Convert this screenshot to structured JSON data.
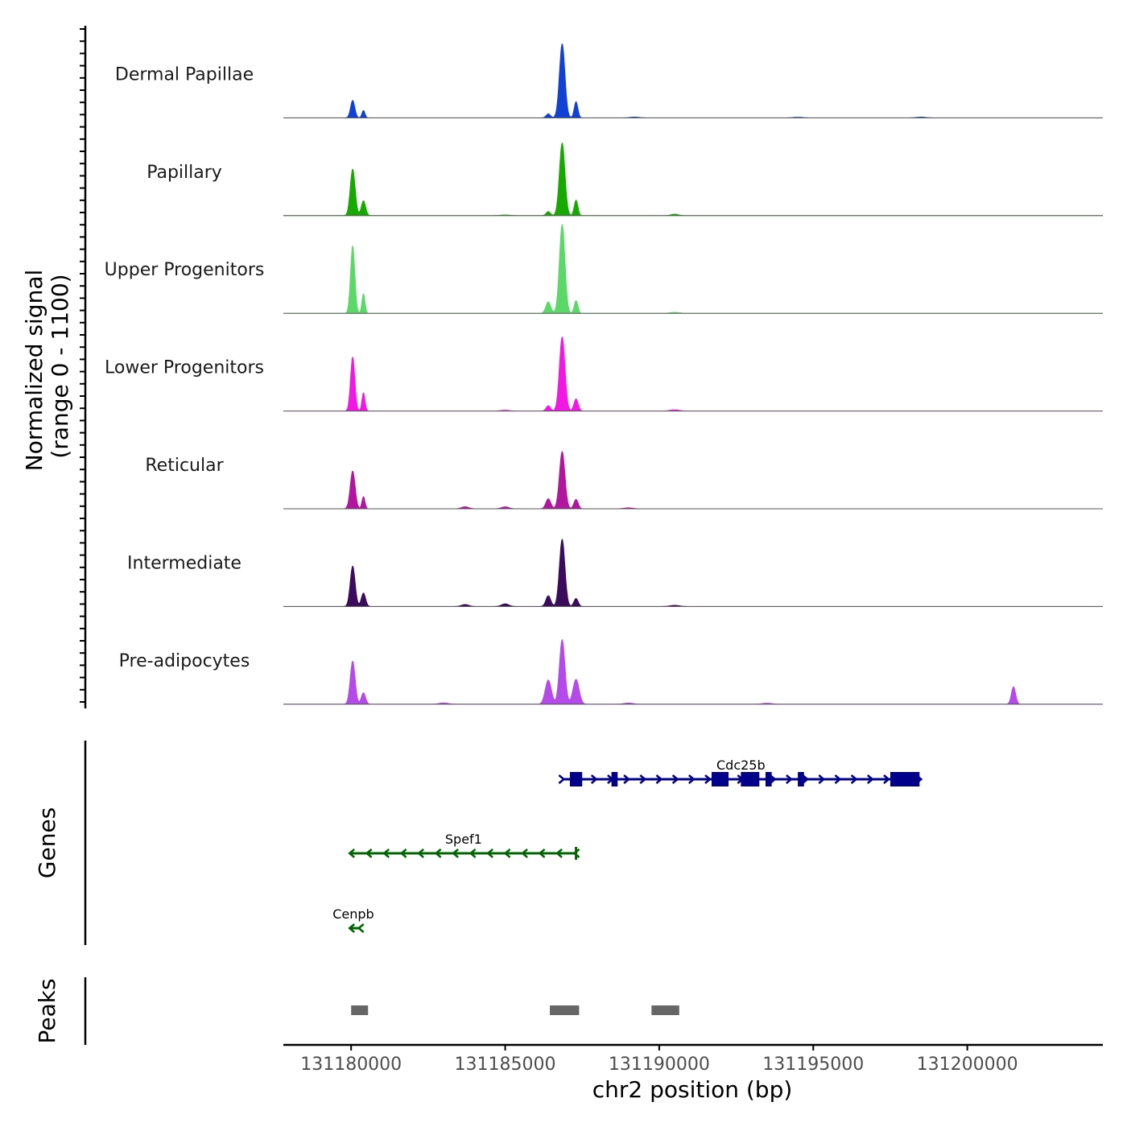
{
  "chart_data": {
    "type": "coverage-plot",
    "y_axis_title_line1": "Normalized signal",
    "y_axis_title_line2": "(range 0 - 1100)",
    "y_range": [
      0,
      1100
    ],
    "x_axis_title": "chr2 position (bp)",
    "x_range": [
      131177800,
      131204400
    ],
    "x_ticks": [
      131180000,
      131185000,
      131190000,
      131195000,
      131200000
    ],
    "x_tick_labels": [
      "131180000",
      "131185000",
      "131190000",
      "131195000",
      "131200000"
    ],
    "tracks": [
      {
        "name": "Dermal Papillae",
        "color": "#1241d6",
        "peaks": [
          [
            131180050,
            260,
            70
          ],
          [
            131180400,
            110,
            50
          ],
          [
            131186400,
            60,
            70
          ],
          [
            131186850,
            1100,
            90
          ],
          [
            131187300,
            240,
            60
          ],
          [
            131189200,
            12,
            150
          ],
          [
            131194500,
            10,
            150
          ],
          [
            131198500,
            12,
            150
          ]
        ]
      },
      {
        "name": "Papillary",
        "color": "#18a802",
        "peaks": [
          [
            131180050,
            690,
            80
          ],
          [
            131180400,
            220,
            70
          ],
          [
            131186400,
            60,
            70
          ],
          [
            131186850,
            1080,
            90
          ],
          [
            131187300,
            230,
            60
          ],
          [
            131185000,
            10,
            150
          ],
          [
            131190500,
            22,
            120
          ]
        ]
      },
      {
        "name": "Upper Progenitors",
        "color": "#5cd868",
        "peaks": [
          [
            131180050,
            1000,
            70
          ],
          [
            131180400,
            290,
            50
          ],
          [
            131186400,
            170,
            80
          ],
          [
            131186850,
            1320,
            90
          ],
          [
            131187300,
            190,
            60
          ],
          [
            131190500,
            15,
            150
          ]
        ]
      },
      {
        "name": "Lower Progenitors",
        "color": "#f218e4",
        "peaks": [
          [
            131180050,
            800,
            70
          ],
          [
            131180400,
            270,
            50
          ],
          [
            131186400,
            80,
            70
          ],
          [
            131186850,
            1100,
            90
          ],
          [
            131187300,
            180,
            70
          ],
          [
            131185000,
            12,
            150
          ],
          [
            131190500,
            18,
            150
          ]
        ]
      },
      {
        "name": "Reticular",
        "color": "#b0179e",
        "peaks": [
          [
            131180050,
            560,
            80
          ],
          [
            131180400,
            180,
            50
          ],
          [
            131186400,
            150,
            80
          ],
          [
            131186850,
            850,
            90
          ],
          [
            131187300,
            140,
            70
          ],
          [
            131183700,
            30,
            120
          ],
          [
            131185000,
            30,
            120
          ],
          [
            131189000,
            14,
            150
          ]
        ]
      },
      {
        "name": "Intermediate",
        "color": "#3b0b5c",
        "peaks": [
          [
            131180050,
            600,
            80
          ],
          [
            131180400,
            200,
            70
          ],
          [
            131186400,
            160,
            80
          ],
          [
            131186850,
            1000,
            90
          ],
          [
            131187300,
            120,
            70
          ],
          [
            131183700,
            30,
            120
          ],
          [
            131185000,
            40,
            120
          ],
          [
            131190500,
            18,
            150
          ]
        ]
      },
      {
        "name": "Pre-adipocytes",
        "color": "#b44be8",
        "peaks": [
          [
            131180050,
            640,
            80
          ],
          [
            131180400,
            170,
            70
          ],
          [
            131186400,
            360,
            100
          ],
          [
            131186850,
            960,
            90
          ],
          [
            131187300,
            370,
            100
          ],
          [
            131201500,
            260,
            70
          ],
          [
            131183000,
            20,
            150
          ],
          [
            131189000,
            18,
            150
          ],
          [
            131193500,
            16,
            150
          ]
        ]
      }
    ],
    "genes_title": "Genes",
    "genes": [
      {
        "name": "Cdc25b",
        "strand": "+",
        "color": "#00008b",
        "start": 131186850,
        "end": 131198450,
        "exons": [
          [
            131187100,
            131187500
          ],
          [
            131188450,
            131188650
          ],
          [
            131191700,
            131192250
          ],
          [
            131192650,
            131193250
          ],
          [
            131193450,
            131193650
          ],
          [
            131194500,
            131194700
          ],
          [
            131197500,
            131198450
          ]
        ]
      },
      {
        "name": "Spef1",
        "strand": "-",
        "color": "#006400",
        "start": 131180000,
        "end": 131187300,
        "exons": []
      },
      {
        "name": "Cenpb",
        "strand": "-",
        "color": "#006400",
        "start": 131180000,
        "end": 131180300,
        "exons": []
      }
    ],
    "peaks_title": "Peaks",
    "peak_regions": [
      [
        131180000,
        131180550
      ],
      [
        131186450,
        131187400
      ],
      [
        131189750,
        131190650
      ]
    ],
    "peak_color": "#666666"
  }
}
